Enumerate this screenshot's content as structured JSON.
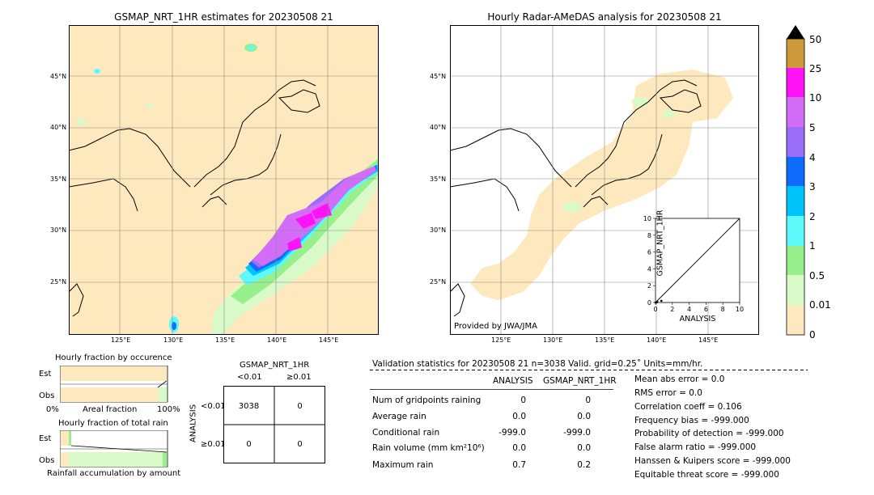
{
  "colors": {
    "land_bg": "#fee8be",
    "c001": "#fee8be",
    "c05": "#d8fac8",
    "c1": "#98f08c",
    "c2": "#5dfafb",
    "c3": "#00c3fb",
    "c4": "#0f6bfb",
    "c5": "#9a6dfa",
    "c10": "#d36df7",
    "c25": "#ff12f5",
    "c50": "#cd9a3a",
    "above": "#000000"
  },
  "left_map": {
    "title": "GSMAP_NRT_1HR estimates for 20230508 21",
    "lat_labels": [
      "45°N",
      "40°N",
      "35°N",
      "30°N",
      "25°N"
    ],
    "lon_labels": [
      "125°E",
      "130°E",
      "135°E",
      "140°E",
      "145°E"
    ]
  },
  "right_map": {
    "title": "Hourly Radar-AMeDAS analysis for 20230508 21",
    "lat_labels": [
      "45°N",
      "40°N",
      "35°N",
      "30°N",
      "25°N"
    ],
    "lon_labels": [
      "125°E",
      "130°E",
      "135°E",
      "140°E",
      "145°E"
    ],
    "provider": "Provided by JWA/JMA"
  },
  "colorbar": {
    "labels": [
      "50",
      "25",
      "10",
      "5",
      "4",
      "3",
      "2",
      "1",
      "0.5",
      "0.01",
      "0"
    ]
  },
  "chart_data": {
    "type": "scatter",
    "title": "",
    "xlabel": "ANALYSIS",
    "ylabel": "GSMAP_NRT_1HR",
    "xlim": [
      0,
      10
    ],
    "ylim": [
      0,
      10
    ],
    "x_ticks": [
      "0",
      "2",
      "4",
      "6",
      "8",
      "10"
    ],
    "y_ticks": [
      "0",
      "2",
      "4",
      "6",
      "8",
      "10"
    ],
    "points": [
      [
        0.0,
        0.0
      ],
      [
        0.1,
        0.0
      ],
      [
        0.2,
        0.1
      ],
      [
        0.7,
        0.2
      ]
    ],
    "diagonal": [
      [
        0,
        0
      ],
      [
        10,
        10
      ]
    ]
  },
  "occurrence": {
    "title": "Hourly fraction by occurence",
    "est_label": "Est",
    "obs_label": "Obs",
    "axis_left": "0%",
    "axis_mid": "Areal fraction",
    "axis_right": "100%",
    "est_fraction": 0.99,
    "obs_fraction": 0.91
  },
  "total_rain": {
    "title": "Hourly fraction of total rain",
    "est_label": "Est",
    "obs_label": "Obs",
    "footer": "Rainfall accumulation by amount"
  },
  "contingency": {
    "title": "GSMAP_NRT_1HR",
    "col_lt": "<0.01",
    "col_ge": "≥0.01",
    "row_axis": "ANALYSIS",
    "row_lt": "<0.01",
    "row_ge": "≥0.01",
    "cells": [
      "3038",
      "0",
      "0",
      "0"
    ]
  },
  "validation": {
    "header": "Validation statistics for 20230508 21  n=3038 Valid. grid=0.25˚ Units=mm/hr.",
    "col_analysis": "ANALYSIS",
    "col_gsmap": "GSMAP_NRT_1HR",
    "rows": [
      {
        "label": "Num of gridpoints raining",
        "analysis": "0",
        "gsmap": "0"
      },
      {
        "label": "Average rain",
        "analysis": "0.0",
        "gsmap": "0.0"
      },
      {
        "label": "Conditional rain",
        "analysis": "-999.0",
        "gsmap": "-999.0"
      },
      {
        "label": "Rain volume (mm km²10⁶)",
        "analysis": "0.0",
        "gsmap": "0.0"
      },
      {
        "label": "Maximum rain",
        "analysis": "0.7",
        "gsmap": "0.2"
      }
    ],
    "scores": [
      "Mean abs error =    0.0",
      "RMS error =    0.0",
      "Correlation coeff =  0.106",
      "Frequency bias = -999.000",
      "Probability of detection = -999.000",
      "False alarm ratio = -999.000",
      "Hanssen & Kuipers score = -999.000",
      "Equitable threat score = -999.000"
    ]
  }
}
